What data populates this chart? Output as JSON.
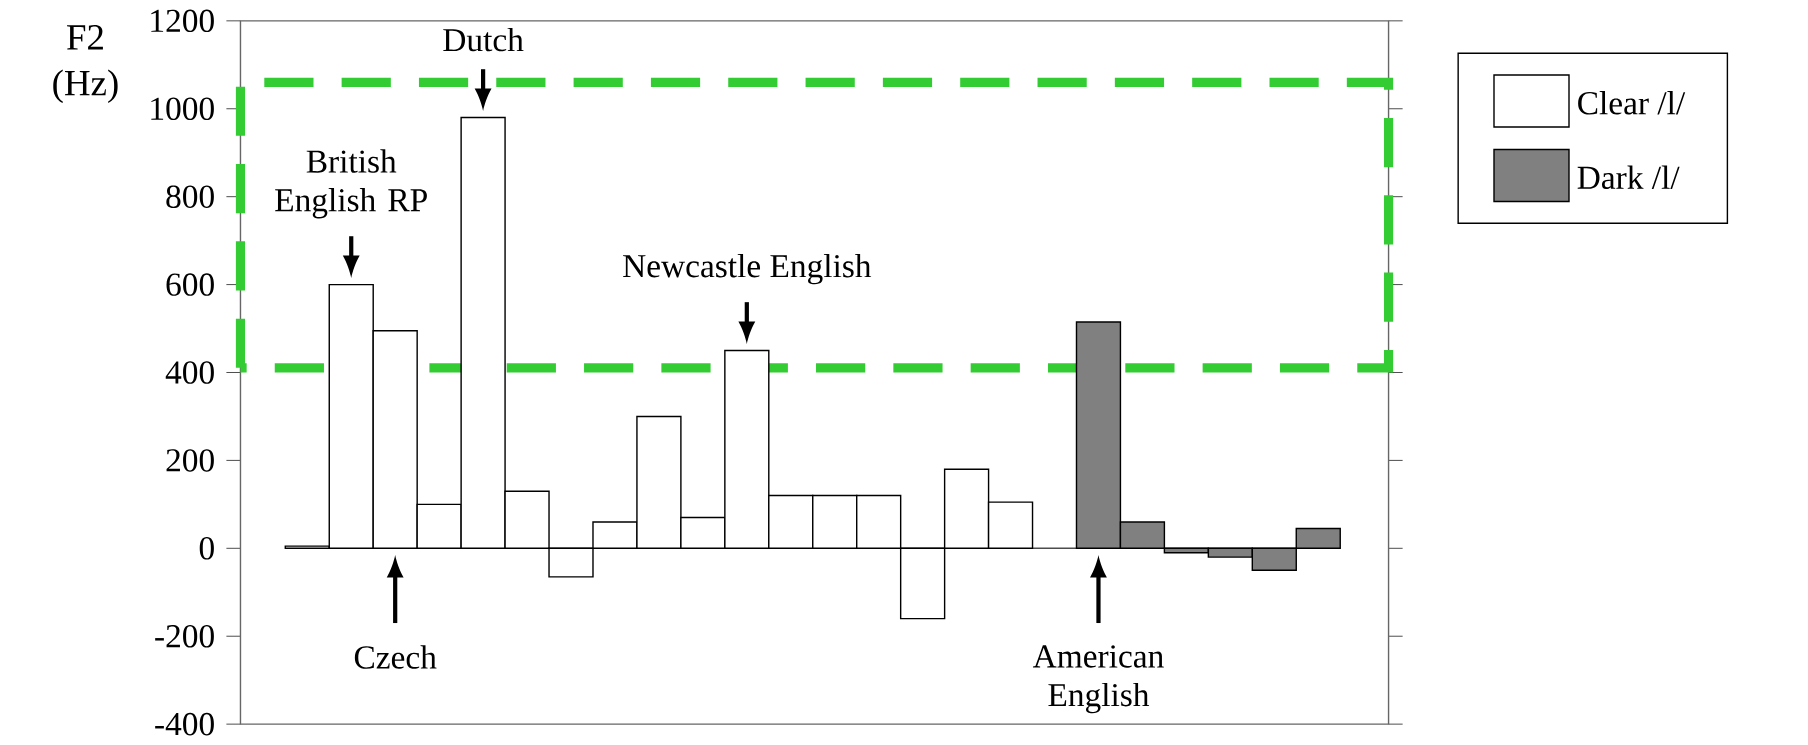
{
  "chart_data": {
    "type": "bar",
    "ylabel": "F2 (Hz)",
    "categories": [
      null,
      "British English RP",
      "Czech",
      null,
      "Dutch",
      null,
      null,
      null,
      null,
      null,
      "Newcastle English",
      null,
      null,
      null,
      null,
      null,
      null,
      null,
      "American English",
      null,
      null,
      null,
      null,
      null
    ],
    "series": [
      {
        "name": "Clear /l/",
        "color": "#ffffff",
        "values": [
          5,
          600,
          495,
          100,
          980,
          130,
          -65,
          60,
          300,
          70,
          450,
          120,
          120,
          120,
          -160,
          180,
          105,
          null,
          null,
          null,
          null,
          null,
          null,
          null
        ]
      },
      {
        "name": "Dark /l/",
        "color": "#808080",
        "values": [
          null,
          null,
          null,
          null,
          null,
          null,
          null,
          null,
          null,
          null,
          null,
          null,
          null,
          null,
          null,
          null,
          null,
          null,
          515,
          60,
          -10,
          -20,
          -50,
          45
        ]
      }
    ],
    "ylim": [
      -400,
      1200
    ],
    "yticks": [
      -400,
      -200,
      0,
      200,
      400,
      600,
      800,
      1000,
      1200
    ],
    "legend": "top right"
  }
}
